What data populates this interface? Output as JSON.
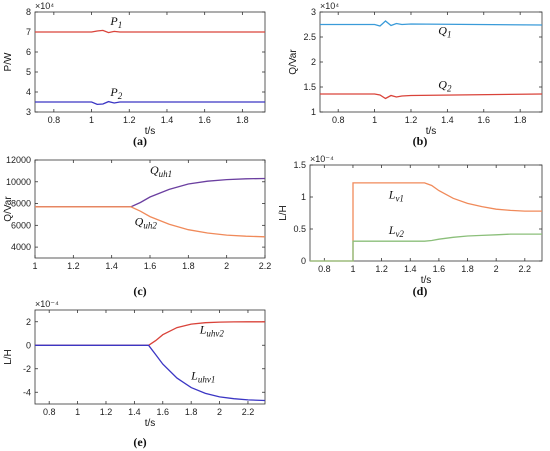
{
  "chart_data": [
    {
      "type": "line",
      "id": "a",
      "caption": "(a)",
      "xlabel": "t/s",
      "ylabel": "P/W",
      "multiplier": "×10⁴",
      "xlim": [
        0.7,
        1.92
      ],
      "ylim": [
        3,
        8
      ],
      "xticks": [
        0.8,
        1,
        1.2,
        1.4,
        1.6,
        1.8
      ],
      "yticks": [
        3,
        4,
        5,
        6,
        7,
        8
      ],
      "grid": false,
      "series": [
        {
          "name": "P1",
          "color": "#d9433a",
          "x": [
            0.7,
            1.0,
            1.03,
            1.06,
            1.09,
            1.12,
            1.15,
            1.2,
            1.92
          ],
          "values": [
            7.0,
            7.0,
            7.05,
            7.08,
            6.97,
            7.03,
            7.0,
            7.0,
            7.0
          ]
        },
        {
          "name": "P2",
          "color": "#3b36c4",
          "x": [
            0.7,
            1.0,
            1.03,
            1.06,
            1.09,
            1.12,
            1.15,
            1.2,
            1.92
          ],
          "values": [
            3.5,
            3.5,
            3.38,
            3.4,
            3.52,
            3.45,
            3.5,
            3.5,
            3.5
          ]
        }
      ],
      "annotations": [
        {
          "label": "P",
          "sub": "1",
          "x": 1.1,
          "y": 7.35
        },
        {
          "label": "P",
          "sub": "2",
          "x": 1.1,
          "y": 3.8
        }
      ]
    },
    {
      "type": "line",
      "id": "b",
      "caption": "(b)",
      "xlabel": "t/s",
      "ylabel": "Q/Var",
      "multiplier": "×10⁴",
      "xlim": [
        0.7,
        1.92
      ],
      "ylim": [
        1,
        3
      ],
      "xticks": [
        0.8,
        1,
        1.2,
        1.4,
        1.6,
        1.8
      ],
      "yticks": [
        1,
        1.5,
        2,
        2.5,
        3
      ],
      "grid": false,
      "series": [
        {
          "name": "Q1",
          "color": "#3a9bd9",
          "x": [
            0.7,
            1.0,
            1.03,
            1.06,
            1.09,
            1.12,
            1.15,
            1.2,
            1.92
          ],
          "values": [
            2.75,
            2.75,
            2.72,
            2.82,
            2.73,
            2.77,
            2.75,
            2.76,
            2.74
          ]
        },
        {
          "name": "Q2",
          "color": "#d9433a",
          "x": [
            0.7,
            1.0,
            1.03,
            1.06,
            1.09,
            1.12,
            1.15,
            1.2,
            1.92
          ],
          "values": [
            1.36,
            1.36,
            1.34,
            1.27,
            1.33,
            1.3,
            1.32,
            1.33,
            1.36
          ]
        }
      ],
      "annotations": [
        {
          "label": "Q",
          "sub": "1",
          "x": 1.35,
          "y": 2.55
        },
        {
          "label": "Q",
          "sub": "2",
          "x": 1.35,
          "y": 1.47
        }
      ]
    },
    {
      "type": "line",
      "id": "c",
      "caption": "(c)",
      "xlabel": "",
      "ylabel": "Q/Var",
      "multiplier": "",
      "xlim": [
        1,
        2.2
      ],
      "ylim": [
        3000,
        12000
      ],
      "xticks": [
        1,
        1.2,
        1.4,
        1.6,
        1.8,
        2,
        2.2
      ],
      "yticks": [
        4000,
        6000,
        8000,
        10000,
        12000
      ],
      "grid": false,
      "series": [
        {
          "name": "Quh1",
          "color": "#6b3fa0",
          "x": [
            1.0,
            1.5,
            1.55,
            1.6,
            1.7,
            1.8,
            1.9,
            2.0,
            2.1,
            2.2
          ],
          "values": [
            7700,
            7700,
            8100,
            8600,
            9300,
            9800,
            10050,
            10200,
            10270,
            10300
          ]
        },
        {
          "name": "Quh2",
          "color": "#f08a5a",
          "x": [
            1.0,
            1.5,
            1.55,
            1.6,
            1.7,
            1.8,
            1.9,
            2.0,
            2.1,
            2.2
          ],
          "values": [
            7700,
            7700,
            7300,
            6800,
            6100,
            5600,
            5300,
            5100,
            5000,
            4950
          ]
        }
      ],
      "annotations": [
        {
          "label": "Q",
          "sub": "uh1",
          "x": 1.6,
          "y": 10700
        },
        {
          "label": "Q",
          "sub": "uh2",
          "x": 1.52,
          "y": 6000
        }
      ]
    },
    {
      "type": "line",
      "id": "d",
      "caption": "(d)",
      "xlabel": "t/s",
      "ylabel": "L/H",
      "multiplier": "×10⁻⁴",
      "xlim": [
        0.7,
        2.32
      ],
      "ylim": [
        0,
        1.5
      ],
      "xticks": [
        0.8,
        1,
        1.2,
        1.4,
        1.6,
        1.8,
        2,
        2.2
      ],
      "yticks": [
        0,
        0.5,
        1,
        1.5
      ],
      "grid": false,
      "series": [
        {
          "name": "Lv1",
          "color": "#f08a5a",
          "x": [
            0.7,
            1.0,
            1.0,
            1.5,
            1.55,
            1.6,
            1.7,
            1.8,
            1.9,
            2.0,
            2.1,
            2.2,
            2.32
          ],
          "values": [
            0,
            0,
            1.22,
            1.22,
            1.18,
            1.1,
            0.98,
            0.9,
            0.85,
            0.81,
            0.79,
            0.78,
            0.78
          ]
        },
        {
          "name": "Lv2",
          "color": "#8bbf7a",
          "x": [
            0.7,
            1.0,
            1.0,
            1.5,
            1.55,
            1.6,
            1.7,
            1.8,
            1.9,
            2.0,
            2.1,
            2.2,
            2.32
          ],
          "values": [
            0,
            0,
            0.31,
            0.31,
            0.32,
            0.34,
            0.37,
            0.39,
            0.4,
            0.41,
            0.42,
            0.42,
            0.42
          ]
        }
      ],
      "annotations": [
        {
          "label": "L",
          "sub": "v1",
          "x": 1.25,
          "y": 0.98
        },
        {
          "label": "L",
          "sub": "v2",
          "x": 1.25,
          "y": 0.42
        }
      ]
    },
    {
      "type": "line",
      "id": "e",
      "caption": "(e)",
      "xlabel": "t/s",
      "ylabel": "L/H",
      "multiplier": "×10⁻⁴",
      "xlim": [
        0.7,
        2.32
      ],
      "ylim": [
        -5,
        3
      ],
      "xticks": [
        0.8,
        1,
        1.2,
        1.4,
        1.6,
        1.8,
        2,
        2.2
      ],
      "yticks": [
        -4,
        -2,
        0,
        2
      ],
      "grid": false,
      "series": [
        {
          "name": "Luhv2",
          "color": "#d9433a",
          "x": [
            0.7,
            1.5,
            1.55,
            1.6,
            1.7,
            1.8,
            1.9,
            2.0,
            2.1,
            2.2,
            2.32
          ],
          "values": [
            0,
            0,
            0.4,
            0.9,
            1.5,
            1.8,
            1.92,
            1.97,
            1.99,
            2.0,
            2.0
          ]
        },
        {
          "name": "Luhv1",
          "color": "#3b36c4",
          "x": [
            0.7,
            1.5,
            1.55,
            1.6,
            1.7,
            1.8,
            1.9,
            2.0,
            2.1,
            2.2,
            2.32
          ],
          "values": [
            0,
            0,
            -0.8,
            -1.6,
            -2.8,
            -3.6,
            -4.1,
            -4.4,
            -4.55,
            -4.65,
            -4.7
          ]
        }
      ],
      "annotations": [
        {
          "label": "L",
          "sub": "uhv2",
          "x": 1.86,
          "y": 1.0
        },
        {
          "label": "L",
          "sub": "uhv1",
          "x": 1.8,
          "y": -2.9
        }
      ]
    }
  ]
}
